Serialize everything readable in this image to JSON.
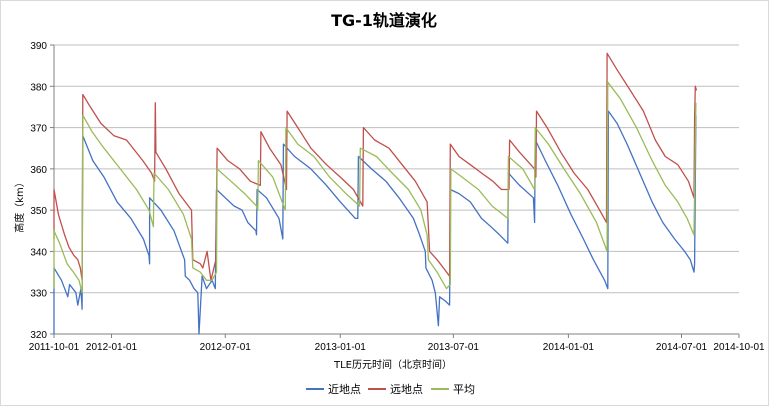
{
  "chart_data": {
    "type": "line",
    "title": "TG-1轨道演化",
    "xlabel": "TLE历元时间（北京时间）",
    "ylabel": "高度（km）",
    "ylim": [
      320,
      390
    ],
    "yticks": [
      320,
      330,
      340,
      350,
      360,
      370,
      380,
      390
    ],
    "xlim": [
      "2011-10-01",
      "2014-10-01"
    ],
    "xticks": [
      "2011-10-01",
      "2012-01-01",
      "2012-07-01",
      "2013-01-01",
      "2013-07-01",
      "2014-01-01",
      "2014-07-01",
      "2014-10-01"
    ],
    "grid": "horizontal",
    "legend": "bottom",
    "series": [
      {
        "name": "近地点",
        "color": "#4472c4",
        "points": [
          [
            "2011-10-01",
            320
          ],
          [
            "2011-10-01",
            336
          ],
          [
            "2011-10-13",
            333
          ],
          [
            "2011-10-23",
            329
          ],
          [
            "2011-10-26",
            332
          ],
          [
            "2011-11-05",
            330
          ],
          [
            "2011-11-08",
            327
          ],
          [
            "2011-11-13",
            331
          ],
          [
            "2011-11-15",
            326
          ],
          [
            "2011-11-16",
            368
          ],
          [
            "2011-12-02",
            362
          ],
          [
            "2011-12-20",
            358
          ],
          [
            "2012-01-10",
            352
          ],
          [
            "2012-02-01",
            348
          ],
          [
            "2012-02-21",
            343
          ],
          [
            "2012-03-01",
            339
          ],
          [
            "2012-03-02",
            337
          ],
          [
            "2012-03-02",
            353
          ],
          [
            "2012-03-20",
            350
          ],
          [
            "2012-04-10",
            345
          ],
          [
            "2012-04-27",
            338
          ],
          [
            "2012-04-28",
            334
          ],
          [
            "2012-05-05",
            333
          ],
          [
            "2012-05-12",
            331
          ],
          [
            "2012-05-18",
            330
          ],
          [
            "2012-05-20",
            320
          ],
          [
            "2012-05-25",
            334
          ],
          [
            "2012-06-01",
            331
          ],
          [
            "2012-06-10",
            333
          ],
          [
            "2012-06-15",
            331
          ],
          [
            "2012-06-17",
            355
          ],
          [
            "2012-07-01",
            353
          ],
          [
            "2012-07-15",
            351
          ],
          [
            "2012-07-28",
            350
          ],
          [
            "2012-08-06",
            347
          ],
          [
            "2012-08-19",
            345
          ],
          [
            "2012-08-20",
            344
          ],
          [
            "2012-08-21",
            355
          ],
          [
            "2012-09-05",
            353
          ],
          [
            "2012-09-25",
            348
          ],
          [
            "2012-10-01",
            343
          ],
          [
            "2012-10-02",
            366
          ],
          [
            "2012-10-20",
            363
          ],
          [
            "2012-11-15",
            360
          ],
          [
            "2012-12-10",
            356
          ],
          [
            "2013-01-01",
            352
          ],
          [
            "2013-01-25",
            348
          ],
          [
            "2013-01-29",
            348
          ],
          [
            "2013-01-30",
            363
          ],
          [
            "2013-02-20",
            360
          ],
          [
            "2013-03-15",
            357
          ],
          [
            "2013-04-05",
            353
          ],
          [
            "2013-04-28",
            348
          ],
          [
            "2013-05-08",
            344
          ],
          [
            "2013-05-17",
            340
          ],
          [
            "2013-05-18",
            336
          ],
          [
            "2013-05-28",
            333
          ],
          [
            "2013-06-02",
            330
          ],
          [
            "2013-06-07",
            322
          ],
          [
            "2013-06-09",
            329
          ],
          [
            "2013-06-18",
            328
          ],
          [
            "2013-06-25",
            327
          ],
          [
            "2013-06-26",
            355
          ],
          [
            "2013-07-10",
            354
          ],
          [
            "2013-07-28",
            352
          ],
          [
            "2013-08-15",
            348
          ],
          [
            "2013-08-30",
            346
          ],
          [
            "2013-09-13",
            344
          ],
          [
            "2013-09-26",
            342
          ],
          [
            "2013-09-27",
            359
          ],
          [
            "2013-10-15",
            356
          ],
          [
            "2013-11-06",
            353
          ],
          [
            "2013-11-08",
            347
          ],
          [
            "2013-11-09",
            367
          ],
          [
            "2013-11-25",
            362
          ],
          [
            "2013-12-15",
            356
          ],
          [
            "2014-01-05",
            349
          ],
          [
            "2014-01-25",
            343
          ],
          [
            "2014-02-10",
            338
          ],
          [
            "2014-02-28",
            333
          ],
          [
            "2014-03-05",
            331
          ],
          [
            "2014-03-06",
            374
          ],
          [
            "2014-03-20",
            371
          ],
          [
            "2014-04-05",
            366
          ],
          [
            "2014-04-25",
            359
          ],
          [
            "2014-05-15",
            352
          ],
          [
            "2014-06-01",
            347
          ],
          [
            "2014-06-20",
            343
          ],
          [
            "2014-07-06",
            340
          ],
          [
            "2014-07-15",
            338
          ],
          [
            "2014-07-21",
            335
          ],
          [
            "2014-07-22",
            337
          ],
          [
            "2014-07-24",
            373
          ]
        ]
      },
      {
        "name": "远地点",
        "color": "#c0504d",
        "points": [
          [
            "2011-10-01",
            343
          ],
          [
            "2011-10-01",
            355
          ],
          [
            "2011-10-08",
            349
          ],
          [
            "2011-10-18",
            344
          ],
          [
            "2011-10-25",
            341
          ],
          [
            "2011-11-02",
            339
          ],
          [
            "2011-11-08",
            338
          ],
          [
            "2011-11-12",
            336
          ],
          [
            "2011-11-15",
            333
          ],
          [
            "2011-11-16",
            378
          ],
          [
            "2011-11-28",
            375
          ],
          [
            "2011-12-15",
            371
          ],
          [
            "2012-01-05",
            368
          ],
          [
            "2012-01-25",
            367
          ],
          [
            "2012-02-20",
            362
          ],
          [
            "2012-03-05",
            359
          ],
          [
            "2012-03-10",
            357
          ],
          [
            "2012-03-11",
            376
          ],
          [
            "2012-03-12",
            364
          ],
          [
            "2012-03-28",
            360
          ],
          [
            "2012-04-18",
            354
          ],
          [
            "2012-05-08",
            350
          ],
          [
            "2012-05-10",
            338
          ],
          [
            "2012-05-22",
            337
          ],
          [
            "2012-05-26",
            336
          ],
          [
            "2012-06-02",
            340
          ],
          [
            "2012-06-08",
            333
          ],
          [
            "2012-06-16",
            338
          ],
          [
            "2012-06-18",
            365
          ],
          [
            "2012-07-05",
            362
          ],
          [
            "2012-07-24",
            360
          ],
          [
            "2012-08-10",
            357
          ],
          [
            "2012-08-26",
            356
          ],
          [
            "2012-08-27",
            369
          ],
          [
            "2012-09-10",
            365
          ],
          [
            "2012-09-28",
            361
          ],
          [
            "2012-10-07",
            355
          ],
          [
            "2012-10-08",
            374
          ],
          [
            "2012-10-25",
            370
          ],
          [
            "2012-11-15",
            365
          ],
          [
            "2012-12-10",
            361
          ],
          [
            "2013-01-01",
            358
          ],
          [
            "2013-01-22",
            355
          ],
          [
            "2013-02-06",
            351
          ],
          [
            "2013-02-07",
            370
          ],
          [
            "2013-02-25",
            367
          ],
          [
            "2013-03-20",
            365
          ],
          [
            "2013-04-10",
            361
          ],
          [
            "2013-05-01",
            357
          ],
          [
            "2013-05-20",
            352
          ],
          [
            "2013-05-24",
            340
          ],
          [
            "2013-06-05",
            338
          ],
          [
            "2013-06-15",
            336
          ],
          [
            "2013-06-25",
            334
          ],
          [
            "2013-06-26",
            366
          ],
          [
            "2013-07-10",
            363
          ],
          [
            "2013-07-28",
            361
          ],
          [
            "2013-08-15",
            359
          ],
          [
            "2013-09-02",
            357
          ],
          [
            "2013-09-16",
            355
          ],
          [
            "2013-09-28",
            355
          ],
          [
            "2013-09-29",
            367
          ],
          [
            "2013-10-15",
            364
          ],
          [
            "2013-11-08",
            360
          ],
          [
            "2013-11-10",
            358
          ],
          [
            "2013-11-11",
            374
          ],
          [
            "2013-11-28",
            370
          ],
          [
            "2013-12-20",
            364
          ],
          [
            "2014-01-10",
            359
          ],
          [
            "2014-02-01",
            355
          ],
          [
            "2014-02-20",
            350
          ],
          [
            "2014-03-03",
            347
          ],
          [
            "2014-03-04",
            388
          ],
          [
            "2014-03-20",
            384
          ],
          [
            "2014-04-10",
            379
          ],
          [
            "2014-05-01",
            374
          ],
          [
            "2014-05-20",
            367
          ],
          [
            "2014-06-05",
            363
          ],
          [
            "2014-06-25",
            361
          ],
          [
            "2014-07-12",
            357
          ],
          [
            "2014-07-21",
            353
          ],
          [
            "2014-07-22",
            372
          ],
          [
            "2014-07-23",
            380
          ],
          [
            "2014-07-25",
            379
          ]
        ]
      },
      {
        "name": "平均",
        "color": "#9bbb59",
        "points": [
          [
            "2011-10-01",
            331
          ],
          [
            "2011-10-01",
            345
          ],
          [
            "2011-10-10",
            342
          ],
          [
            "2011-10-22",
            337
          ],
          [
            "2011-11-01",
            335
          ],
          [
            "2011-11-10",
            333
          ],
          [
            "2011-11-15",
            330
          ],
          [
            "2011-11-16",
            373
          ],
          [
            "2011-12-01",
            369
          ],
          [
            "2011-12-20",
            365
          ],
          [
            "2012-01-15",
            360
          ],
          [
            "2012-02-10",
            355
          ],
          [
            "2012-03-01",
            350
          ],
          [
            "2012-03-08",
            346
          ],
          [
            "2012-03-09",
            359
          ],
          [
            "2012-04-01",
            355
          ],
          [
            "2012-04-25",
            349
          ],
          [
            "2012-05-08",
            343
          ],
          [
            "2012-05-10",
            336
          ],
          [
            "2012-05-22",
            335
          ],
          [
            "2012-06-01",
            333
          ],
          [
            "2012-06-10",
            333
          ],
          [
            "2012-06-17",
            335
          ],
          [
            "2012-06-18",
            360
          ],
          [
            "2012-07-10",
            357
          ],
          [
            "2012-08-01",
            354
          ],
          [
            "2012-08-20",
            351
          ],
          [
            "2012-08-22",
            350
          ],
          [
            "2012-08-23",
            362
          ],
          [
            "2012-09-15",
            358
          ],
          [
            "2012-10-05",
            350
          ],
          [
            "2012-10-06",
            370
          ],
          [
            "2012-10-25",
            366
          ],
          [
            "2012-11-20",
            363
          ],
          [
            "2012-12-15",
            358
          ],
          [
            "2013-01-10",
            354
          ],
          [
            "2013-02-01",
            351
          ],
          [
            "2013-02-02",
            365
          ],
          [
            "2013-02-28",
            363
          ],
          [
            "2013-03-25",
            359
          ],
          [
            "2013-04-20",
            355
          ],
          [
            "2013-05-10",
            350
          ],
          [
            "2013-05-20",
            344
          ],
          [
            "2013-05-22",
            338
          ],
          [
            "2013-06-05",
            335
          ],
          [
            "2013-06-20",
            331
          ],
          [
            "2013-06-26",
            332
          ],
          [
            "2013-06-27",
            360
          ],
          [
            "2013-07-15",
            358
          ],
          [
            "2013-08-10",
            355
          ],
          [
            "2013-09-01",
            351
          ],
          [
            "2013-09-26",
            348
          ],
          [
            "2013-09-27",
            363
          ],
          [
            "2013-10-20",
            360
          ],
          [
            "2013-11-08",
            355
          ],
          [
            "2013-11-09",
            370
          ],
          [
            "2013-11-30",
            366
          ],
          [
            "2013-12-25",
            360
          ],
          [
            "2014-01-20",
            354
          ],
          [
            "2014-02-15",
            347
          ],
          [
            "2014-03-04",
            340
          ],
          [
            "2014-03-05",
            381
          ],
          [
            "2014-03-25",
            377
          ],
          [
            "2014-04-20",
            370
          ],
          [
            "2014-05-15",
            362
          ],
          [
            "2014-06-05",
            356
          ],
          [
            "2014-06-25",
            352
          ],
          [
            "2014-07-10",
            348
          ],
          [
            "2014-07-21",
            344
          ],
          [
            "2014-07-22",
            355
          ],
          [
            "2014-07-24",
            376
          ]
        ]
      }
    ]
  }
}
